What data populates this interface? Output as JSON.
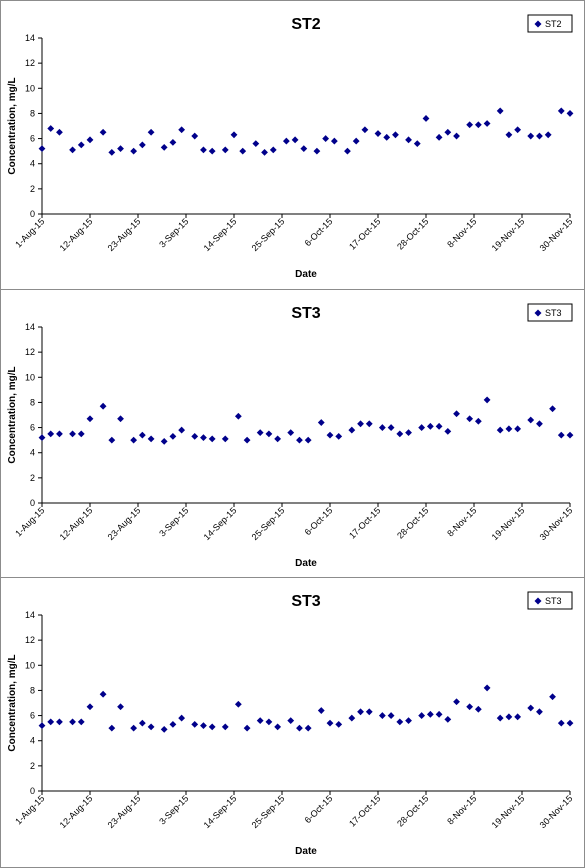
{
  "charts_common": {
    "x_ticks": [
      "1-Aug-15",
      "12-Aug-15",
      "23-Aug-15",
      "3-Sep-15",
      "14-Sep-15",
      "25-Sep-15",
      "6-Oct-15",
      "17-Oct-15",
      "28-Oct-15",
      "8-Nov-15",
      "19-Nov-15",
      "30-Nov-15"
    ],
    "y_ticks": [
      "0",
      "2",
      "4",
      "6",
      "8",
      "10",
      "12",
      "14"
    ],
    "marker_color": "#00008b"
  },
  "chart_data": [
    {
      "type": "scatter",
      "title": "ST2",
      "xlabel": "Date",
      "ylabel": "Concentration, mg/L",
      "xlim": [
        "2015-08-01",
        "2015-11-30"
      ],
      "ylim": [
        0,
        14
      ],
      "legend_position": "top-right",
      "grid": false,
      "series": [
        {
          "name": "ST2",
          "x": [
            "2015-08-01",
            "2015-08-03",
            "2015-08-05",
            "2015-08-08",
            "2015-08-10",
            "2015-08-12",
            "2015-08-15",
            "2015-08-17",
            "2015-08-19",
            "2015-08-22",
            "2015-08-24",
            "2015-08-26",
            "2015-08-29",
            "2015-08-31",
            "2015-09-02",
            "2015-09-05",
            "2015-09-07",
            "2015-09-09",
            "2015-09-12",
            "2015-09-14",
            "2015-09-16",
            "2015-09-19",
            "2015-09-21",
            "2015-09-23",
            "2015-09-26",
            "2015-09-28",
            "2015-09-30",
            "2015-10-03",
            "2015-10-05",
            "2015-10-07",
            "2015-10-10",
            "2015-10-12",
            "2015-10-14",
            "2015-10-17",
            "2015-10-19",
            "2015-10-21",
            "2015-10-24",
            "2015-10-26",
            "2015-10-28",
            "2015-10-31",
            "2015-11-02",
            "2015-11-04",
            "2015-11-07",
            "2015-11-09",
            "2015-11-11",
            "2015-11-14",
            "2015-11-16",
            "2015-11-18",
            "2015-11-21",
            "2015-11-23",
            "2015-11-25",
            "2015-11-28",
            "2015-11-30"
          ],
          "y": [
            5.2,
            6.8,
            6.5,
            5.1,
            5.5,
            5.9,
            6.5,
            4.9,
            5.2,
            5.0,
            5.5,
            6.5,
            5.3,
            5.7,
            6.7,
            6.2,
            5.1,
            5.0,
            5.1,
            6.3,
            5.0,
            5.6,
            4.9,
            5.1,
            5.8,
            5.9,
            5.2,
            5.0,
            6.0,
            5.8,
            5.0,
            5.8,
            6.7,
            6.4,
            6.1,
            6.3,
            5.9,
            5.6,
            7.6,
            6.1,
            6.5,
            6.2,
            7.1,
            7.1,
            7.2,
            8.2,
            6.3,
            6.7,
            6.2,
            6.2,
            6.3,
            8.2,
            8.0
          ]
        }
      ]
    },
    {
      "type": "scatter",
      "title": "ST3",
      "xlabel": "Date",
      "ylabel": "Concentration, mg/L",
      "xlim": [
        "2015-08-01",
        "2015-11-30"
      ],
      "ylim": [
        0,
        14
      ],
      "legend_position": "top-right",
      "grid": false,
      "series": [
        {
          "name": "ST3",
          "x": [
            "2015-08-01",
            "2015-08-03",
            "2015-08-05",
            "2015-08-08",
            "2015-08-10",
            "2015-08-12",
            "2015-08-15",
            "2015-08-17",
            "2015-08-19",
            "2015-08-22",
            "2015-08-24",
            "2015-08-26",
            "2015-08-29",
            "2015-08-31",
            "2015-09-02",
            "2015-09-05",
            "2015-09-07",
            "2015-09-09",
            "2015-09-12",
            "2015-09-15",
            "2015-09-17",
            "2015-09-20",
            "2015-09-22",
            "2015-09-24",
            "2015-09-27",
            "2015-09-29",
            "2015-10-01",
            "2015-10-04",
            "2015-10-06",
            "2015-10-08",
            "2015-10-11",
            "2015-10-13",
            "2015-10-15",
            "2015-10-18",
            "2015-10-20",
            "2015-10-22",
            "2015-10-24",
            "2015-10-27",
            "2015-10-29",
            "2015-10-31",
            "2015-11-02",
            "2015-11-04",
            "2015-11-07",
            "2015-11-09",
            "2015-11-11",
            "2015-11-14",
            "2015-11-16",
            "2015-11-18",
            "2015-11-21",
            "2015-11-23",
            "2015-11-26",
            "2015-11-28",
            "2015-11-30"
          ],
          "y": [
            5.2,
            5.5,
            5.5,
            5.5,
            5.5,
            6.7,
            7.7,
            5.0,
            6.7,
            5.0,
            5.4,
            5.1,
            4.9,
            5.3,
            5.8,
            5.3,
            5.2,
            5.1,
            5.1,
            6.9,
            5.0,
            5.6,
            5.5,
            5.1,
            5.6,
            5.0,
            5.0,
            6.4,
            5.4,
            5.3,
            5.8,
            6.3,
            6.3,
            6.0,
            6.0,
            5.5,
            5.6,
            6.0,
            6.1,
            6.1,
            5.7,
            7.1,
            6.7,
            6.5,
            8.2,
            5.8,
            5.9,
            5.9,
            6.6,
            6.3,
            7.5,
            5.4,
            5.4
          ]
        }
      ]
    },
    {
      "type": "scatter",
      "title": "ST3",
      "xlabel": "Date",
      "ylabel": "Concentration, mg/L",
      "xlim": [
        "2015-08-01",
        "2015-11-30"
      ],
      "ylim": [
        0,
        14
      ],
      "legend_position": "top-right",
      "grid": false,
      "series": [
        {
          "name": "ST3",
          "x": [
            "2015-08-01",
            "2015-08-03",
            "2015-08-05",
            "2015-08-08",
            "2015-08-10",
            "2015-08-12",
            "2015-08-15",
            "2015-08-17",
            "2015-08-19",
            "2015-08-22",
            "2015-08-24",
            "2015-08-26",
            "2015-08-29",
            "2015-08-31",
            "2015-09-02",
            "2015-09-05",
            "2015-09-07",
            "2015-09-09",
            "2015-09-12",
            "2015-09-15",
            "2015-09-17",
            "2015-09-20",
            "2015-09-22",
            "2015-09-24",
            "2015-09-27",
            "2015-09-29",
            "2015-10-01",
            "2015-10-04",
            "2015-10-06",
            "2015-10-08",
            "2015-10-11",
            "2015-10-13",
            "2015-10-15",
            "2015-10-18",
            "2015-10-20",
            "2015-10-22",
            "2015-10-24",
            "2015-10-27",
            "2015-10-29",
            "2015-10-31",
            "2015-11-02",
            "2015-11-04",
            "2015-11-07",
            "2015-11-09",
            "2015-11-11",
            "2015-11-14",
            "2015-11-16",
            "2015-11-18",
            "2015-11-21",
            "2015-11-23",
            "2015-11-26",
            "2015-11-28",
            "2015-11-30"
          ],
          "y": [
            5.2,
            5.5,
            5.5,
            5.5,
            5.5,
            6.7,
            7.7,
            5.0,
            6.7,
            5.0,
            5.4,
            5.1,
            4.9,
            5.3,
            5.8,
            5.3,
            5.2,
            5.1,
            5.1,
            6.9,
            5.0,
            5.6,
            5.5,
            5.1,
            5.6,
            5.0,
            5.0,
            6.4,
            5.4,
            5.3,
            5.8,
            6.3,
            6.3,
            6.0,
            6.0,
            5.5,
            5.6,
            6.0,
            6.1,
            6.1,
            5.7,
            7.1,
            6.7,
            6.5,
            8.2,
            5.8,
            5.9,
            5.9,
            6.6,
            6.3,
            7.5,
            5.4,
            5.4
          ]
        }
      ]
    }
  ]
}
